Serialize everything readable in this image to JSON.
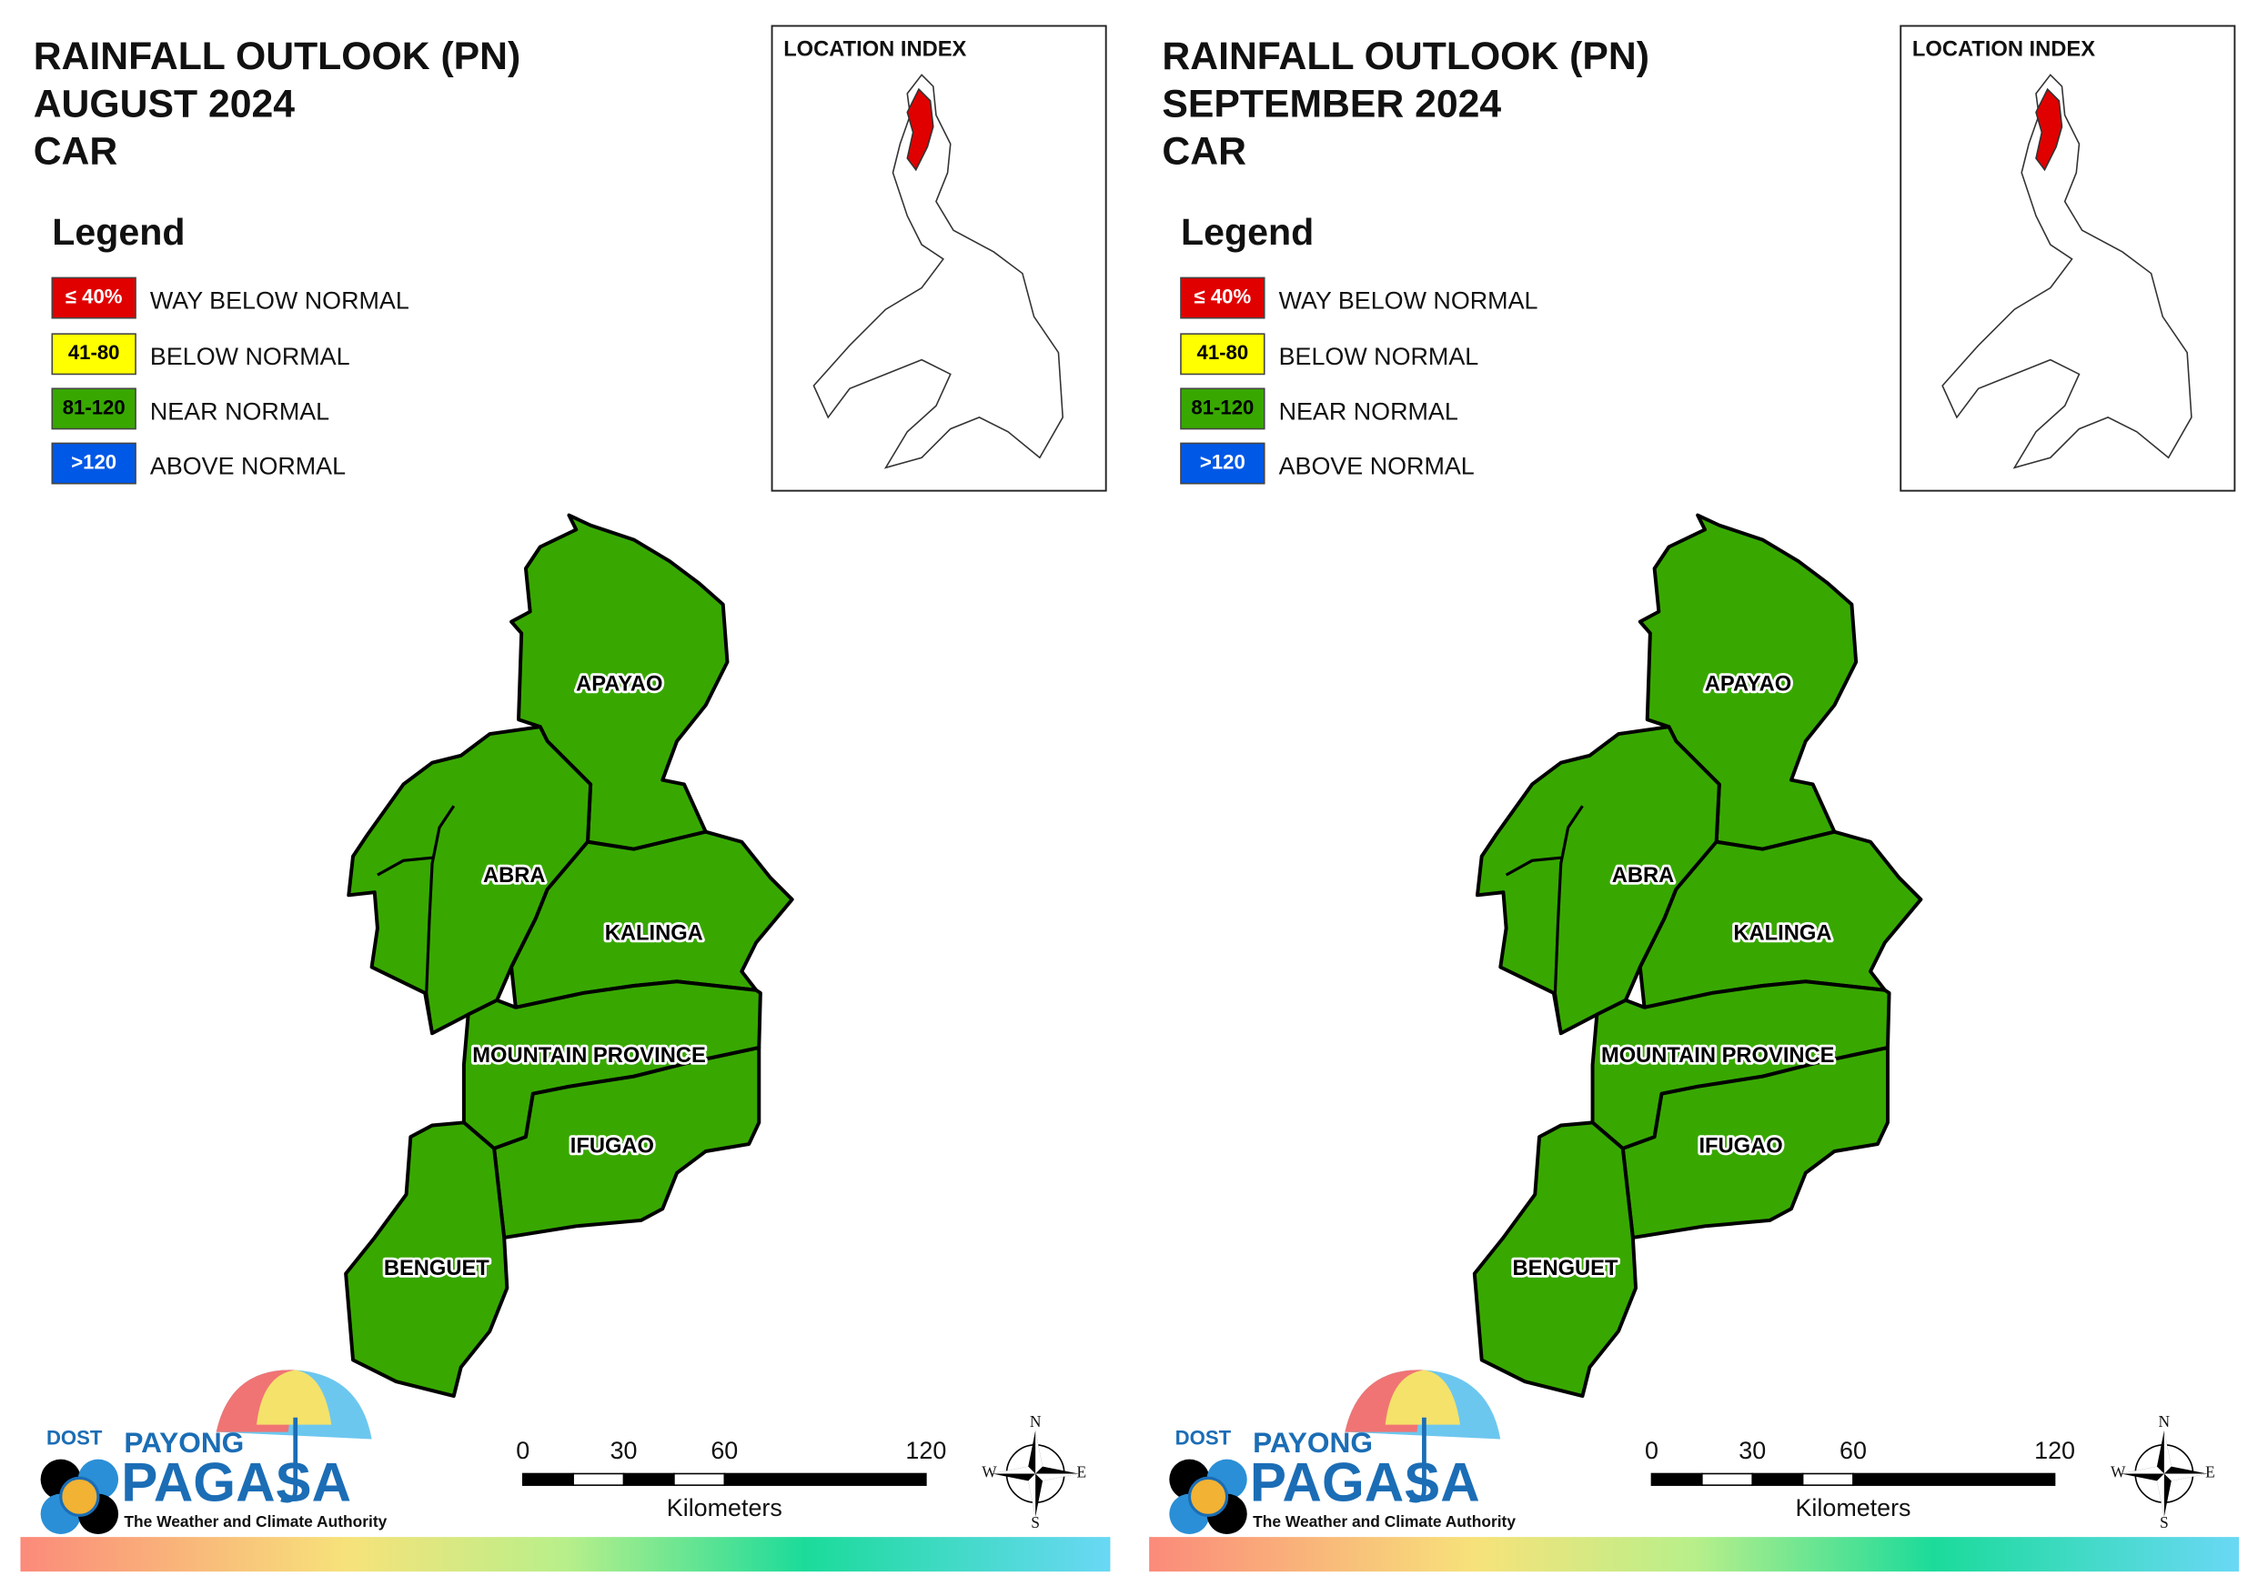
{
  "panels": [
    {
      "title": [
        "RAINFALL OUTLOOK (PN)",
        "AUGUST 2024",
        "CAR"
      ],
      "legend_title": "Legend",
      "legend": [
        {
          "range": "≤ 40%",
          "label": "WAY BELOW NORMAL",
          "color": "#e00000"
        },
        {
          "range": "41-80",
          "label": "BELOW NORMAL",
          "color": "#ffff00"
        },
        {
          "range": "81-120",
          "label": "NEAR NORMAL",
          "color": "#38a800"
        },
        {
          "range": ">120",
          "label": "ABOVE NORMAL",
          "color": "#0058e6"
        }
      ],
      "location_index": "LOCATION INDEX",
      "regions": [
        {
          "name": "APAYAO",
          "color": "#38a800"
        },
        {
          "name": "ABRA",
          "color": "#38a800"
        },
        {
          "name": "KALINGA",
          "color": "#38a800"
        },
        {
          "name": "MOUNTAIN PROVINCE",
          "color": "#38a800"
        },
        {
          "name": "IFUGAO",
          "color": "#38a800"
        },
        {
          "name": "BENGUET",
          "color": "#38a800"
        }
      ],
      "scale": {
        "ticks": [
          0,
          30,
          60,
          120
        ],
        "unit": "Kilometers"
      },
      "compass": [
        "N",
        "E",
        "S",
        "W"
      ],
      "logo": {
        "agency": "DOST",
        "brand_top": "PAYONG",
        "brand": "PAGASA",
        "tagline": "The Weather and Climate Authority"
      }
    },
    {
      "title": [
        "RAINFALL OUTLOOK (PN)",
        "SEPTEMBER 2024",
        "CAR"
      ],
      "legend_title": "Legend",
      "legend": [
        {
          "range": "≤ 40%",
          "label": "WAY BELOW NORMAL",
          "color": "#e00000"
        },
        {
          "range": "41-80",
          "label": "BELOW NORMAL",
          "color": "#ffff00"
        },
        {
          "range": "81-120",
          "label": "NEAR NORMAL",
          "color": "#38a800"
        },
        {
          "range": ">120",
          "label": "ABOVE NORMAL",
          "color": "#0058e6"
        }
      ],
      "location_index": "LOCATION INDEX",
      "regions": [
        {
          "name": "APAYAO",
          "color": "#38a800"
        },
        {
          "name": "ABRA",
          "color": "#38a800"
        },
        {
          "name": "KALINGA",
          "color": "#38a800"
        },
        {
          "name": "MOUNTAIN PROVINCE",
          "color": "#38a800"
        },
        {
          "name": "IFUGAO",
          "color": "#38a800"
        },
        {
          "name": "BENGUET",
          "color": "#38a800"
        }
      ],
      "scale": {
        "ticks": [
          0,
          30,
          60,
          120
        ],
        "unit": "Kilometers"
      },
      "compass": [
        "N",
        "E",
        "S",
        "W"
      ],
      "logo": {
        "agency": "DOST",
        "brand_top": "PAYONG",
        "brand": "PAGASA",
        "tagline": "The Weather and Climate Authority"
      }
    }
  ]
}
